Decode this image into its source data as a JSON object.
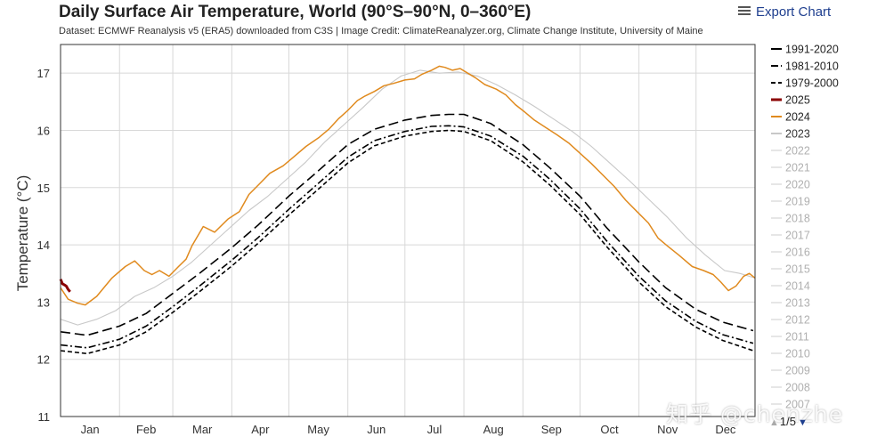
{
  "chart_data": {
    "type": "line",
    "title": "Daily Surface Air Temperature, World (90°S–90°N, 0–360°E)",
    "subtitle": "Dataset: ECMWF Reanalysis v5 (ERA5) downloaded from C3S | Image Credit: ClimateReanalyzer.org, Climate Change Institute, University of Maine",
    "ylabel": "Temperature (°C)",
    "xlabel": "",
    "ylim": [
      11,
      17.5
    ],
    "xlim": [
      1,
      366
    ],
    "y_ticks": [
      11,
      12,
      13,
      14,
      15,
      16,
      17
    ],
    "x_tick_labels": [
      "Jan",
      "Feb",
      "Mar",
      "Apr",
      "May",
      "Jun",
      "Jul",
      "Aug",
      "Sep",
      "Oct",
      "Nov",
      "Dec"
    ],
    "grid": true,
    "legend_position": "right",
    "series": [
      {
        "name": "1991-2020",
        "style": "long-dash",
        "color": "#000000",
        "x": [
          1,
          15,
          32,
          46,
          60,
          74,
          91,
          105,
          121,
          135,
          152,
          166,
          182,
          196,
          205,
          213,
          227,
          244,
          258,
          274,
          288,
          305,
          319,
          335,
          349,
          365
        ],
        "y": [
          12.48,
          12.42,
          12.58,
          12.8,
          13.15,
          13.5,
          13.95,
          14.35,
          14.85,
          15.25,
          15.75,
          16.02,
          16.18,
          16.26,
          16.28,
          16.28,
          16.12,
          15.75,
          15.35,
          14.85,
          14.3,
          13.7,
          13.25,
          12.87,
          12.65,
          12.5
        ]
      },
      {
        "name": "1981-2010",
        "style": "dash-dot",
        "color": "#000000",
        "x": [
          1,
          15,
          32,
          46,
          60,
          74,
          91,
          105,
          121,
          135,
          152,
          166,
          182,
          196,
          205,
          213,
          227,
          244,
          258,
          274,
          288,
          305,
          319,
          335,
          349,
          365
        ],
        "y": [
          12.25,
          12.2,
          12.35,
          12.58,
          12.92,
          13.28,
          13.73,
          14.13,
          14.62,
          15.03,
          15.53,
          15.82,
          15.98,
          16.07,
          16.08,
          16.06,
          15.9,
          15.55,
          15.15,
          14.63,
          14.07,
          13.45,
          13.02,
          12.66,
          12.43,
          12.28
        ]
      },
      {
        "name": "1979-2000",
        "style": "short-dash",
        "color": "#000000",
        "x": [
          1,
          15,
          32,
          46,
          60,
          74,
          91,
          105,
          121,
          135,
          152,
          166,
          182,
          196,
          205,
          213,
          227,
          244,
          258,
          274,
          288,
          305,
          319,
          335,
          349,
          365
        ],
        "y": [
          12.15,
          12.1,
          12.25,
          12.48,
          12.82,
          13.18,
          13.63,
          14.03,
          14.52,
          14.93,
          15.43,
          15.73,
          15.9,
          15.98,
          16.0,
          15.98,
          15.82,
          15.45,
          15.05,
          14.53,
          13.97,
          13.35,
          12.92,
          12.56,
          12.33,
          12.15
        ]
      },
      {
        "name": "2025",
        "style": "solid",
        "color": "#8b0000",
        "x": [
          1,
          2,
          3,
          4,
          5,
          6
        ],
        "y": [
          13.4,
          13.32,
          13.3,
          13.28,
          13.22,
          13.18
        ]
      },
      {
        "name": "2024",
        "style": "solid",
        "color": "#e08a1e",
        "x": [
          1,
          5,
          10,
          14,
          20,
          28,
          35,
          40,
          45,
          49,
          53,
          58,
          63,
          67,
          70,
          76,
          82,
          89,
          95,
          100,
          106,
          111,
          118,
          123,
          130,
          137,
          142,
          147,
          152,
          157,
          161,
          166,
          171,
          176,
          182,
          187,
          191,
          196,
          200,
          203,
          207,
          211,
          215,
          219,
          224,
          230,
          235,
          240,
          245,
          250,
          256,
          262,
          268,
          274,
          280,
          286,
          292,
          298,
          304,
          310,
          315,
          320,
          326,
          333,
          339,
          344,
          348,
          352,
          356,
          360,
          363,
          366
        ],
        "y": [
          13.25,
          13.05,
          12.98,
          12.95,
          13.1,
          13.42,
          13.62,
          13.72,
          13.55,
          13.48,
          13.55,
          13.45,
          13.62,
          13.75,
          13.98,
          14.32,
          14.22,
          14.45,
          14.58,
          14.88,
          15.08,
          15.25,
          15.38,
          15.52,
          15.72,
          15.88,
          16.02,
          16.2,
          16.35,
          16.52,
          16.6,
          16.68,
          16.78,
          16.82,
          16.88,
          16.9,
          16.98,
          17.05,
          17.12,
          17.1,
          17.05,
          17.08,
          17.0,
          16.92,
          16.8,
          16.72,
          16.62,
          16.45,
          16.32,
          16.18,
          16.05,
          15.92,
          15.78,
          15.6,
          15.42,
          15.22,
          15.02,
          14.78,
          14.58,
          14.38,
          14.12,
          13.98,
          13.82,
          13.62,
          13.55,
          13.48,
          13.35,
          13.2,
          13.28,
          13.45,
          13.5,
          13.42
        ]
      },
      {
        "name": "2023",
        "style": "solid",
        "color": "#c8c8c8",
        "x": [
          1,
          10,
          20,
          30,
          40,
          50,
          60,
          70,
          80,
          90,
          100,
          110,
          120,
          130,
          140,
          150,
          160,
          170,
          180,
          190,
          200,
          210,
          220,
          230,
          240,
          250,
          260,
          270,
          280,
          290,
          300,
          310,
          320,
          330,
          340,
          350,
          358,
          366
        ],
        "y": [
          12.7,
          12.6,
          12.7,
          12.85,
          13.1,
          13.25,
          13.45,
          13.7,
          14.0,
          14.3,
          14.6,
          14.85,
          15.15,
          15.45,
          15.8,
          16.1,
          16.4,
          16.72,
          16.95,
          17.05,
          17.0,
          17.02,
          16.95,
          16.8,
          16.62,
          16.42,
          16.2,
          15.98,
          15.72,
          15.42,
          15.12,
          14.8,
          14.48,
          14.12,
          13.82,
          13.55,
          13.5,
          13.42
        ]
      }
    ],
    "faded_legend_years": [
      "2022",
      "2021",
      "2020",
      "2019",
      "2018",
      "2017",
      "2016",
      "2015",
      "2014",
      "2013",
      "2012",
      "2011",
      "2010",
      "2009",
      "2008",
      "2007"
    ]
  },
  "colors": {
    "axis": "#333333",
    "grid": "#d8d8d8",
    "faded_text": "#b0b0b0",
    "link_blue": "#1f3f8f"
  },
  "ui": {
    "export_label": "Export Chart",
    "export_icon": "menu-icon",
    "pager_text": "1/5",
    "pager_up_icon": "triangle-up-icon",
    "pager_down_icon": "triangle-down-icon",
    "watermark": "知乎 @chenzhe"
  }
}
